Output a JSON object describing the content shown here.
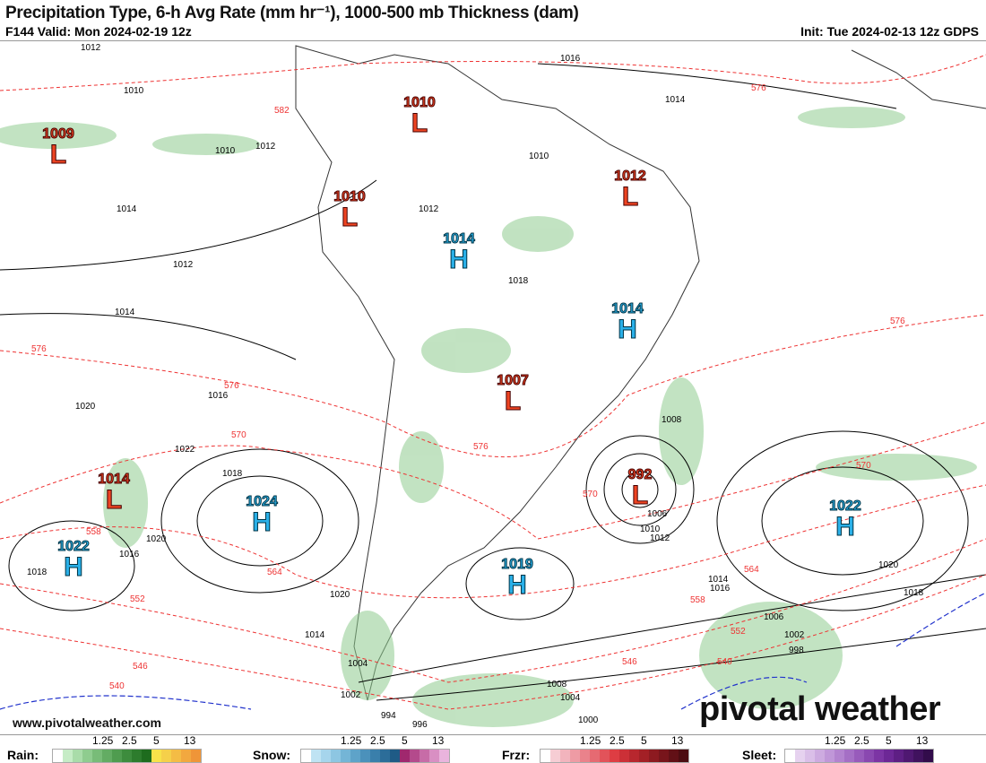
{
  "header": {
    "title": "Precipitation Type, 6-h Avg Rate (mm hr⁻¹), 1000-500 mb Thickness (dam)",
    "valid": "F144 Valid: Mon 2024-02-19 12z",
    "init": "Init: Tue 2024-02-13 12z GDPS"
  },
  "credit": "www.pivotalweather.com",
  "logo": "pivotal weather",
  "pressure_centers": [
    {
      "type": "L",
      "value": "1009"
    },
    {
      "type": "L",
      "value": "1010"
    },
    {
      "type": "L",
      "value": "1012"
    },
    {
      "type": "L",
      "value": "1010"
    },
    {
      "type": "H",
      "value": "1014"
    },
    {
      "type": "H",
      "value": "1014"
    },
    {
      "type": "L",
      "value": "1007"
    },
    {
      "type": "L",
      "value": "1014"
    },
    {
      "type": "H",
      "value": "1024"
    },
    {
      "type": "H",
      "value": "1022"
    },
    {
      "type": "L",
      "value": "992"
    },
    {
      "type": "H",
      "value": "1019"
    },
    {
      "type": "H",
      "value": "1022"
    }
  ],
  "isobar_labels": [
    "1012",
    "1016",
    "1010",
    "1010",
    "1014",
    "1012",
    "1010",
    "1014",
    "1012",
    "1012",
    "1014",
    "1018",
    "1016",
    "1020",
    "1022",
    "1018",
    "1020",
    "1016",
    "1018",
    "1020",
    "1014",
    "1008",
    "1006",
    "1010",
    "1012",
    "1014",
    "1016",
    "1018",
    "1020",
    "1004",
    "1002",
    "998",
    "996",
    "994",
    "1000",
    "1008",
    "1004",
    "1006",
    "1002"
  ],
  "thickness_labels": [
    "582",
    "576",
    "576",
    "576",
    "570",
    "564",
    "558",
    "552",
    "546",
    "540",
    "576",
    "570",
    "564",
    "558",
    "552",
    "546",
    "540",
    "576",
    "570"
  ],
  "legend": [
    {
      "label": "Rain:",
      "ticks": [
        "1.25",
        "2.5",
        "5",
        "13"
      ],
      "colors": [
        "#fff",
        "#c6ecc6",
        "#a9dca9",
        "#8fcc8f",
        "#78bc78",
        "#63ac63",
        "#4f9c4f",
        "#3d8c3d",
        "#2d7c2d",
        "#1e6c1e",
        "#f7e34a",
        "#f5d04a",
        "#f4bc45",
        "#f2a83f",
        "#ef9538"
      ]
    },
    {
      "label": "Snow:",
      "ticks": [
        "1.25",
        "2.5",
        "5",
        "13"
      ],
      "colors": [
        "#fff",
        "#bfe3f3",
        "#a6d5ec",
        "#8dc6e2",
        "#74b5d6",
        "#5ea3c9",
        "#4b91bb",
        "#3a7fab",
        "#2c6d99",
        "#1f5b86",
        "#a0286e",
        "#b44a8c",
        "#c76ca7",
        "#d98fc3",
        "#eab4dd"
      ]
    },
    {
      "label": "Frzr:",
      "ticks": [
        "1.25",
        "2.5",
        "5",
        "13"
      ],
      "colors": [
        "#fff",
        "#f6cdd4",
        "#f2b4bd",
        "#ee9ba4",
        "#ea828b",
        "#e66a72",
        "#e2535a",
        "#de3d43",
        "#cc3037",
        "#b8272e",
        "#a32026",
        "#8d1a20",
        "#78151b",
        "#621016",
        "#4c0c11"
      ]
    },
    {
      "label": "Sleet:",
      "ticks": [
        "1.25",
        "2.5",
        "5",
        "13"
      ],
      "colors": [
        "#fff",
        "#e6d2ef",
        "#dabfe8",
        "#cdabe0",
        "#c097d8",
        "#b383cf",
        "#a56fc5",
        "#985bbb",
        "#8a48b0",
        "#7c35a4",
        "#6d2896",
        "#5e1f84",
        "#4f1871",
        "#40125e",
        "#320c4b"
      ]
    }
  ]
}
